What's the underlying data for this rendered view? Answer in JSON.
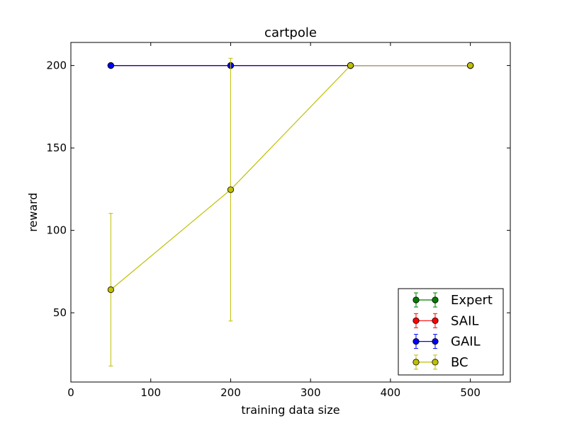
{
  "chart_data": {
    "type": "line",
    "title": "cartpole",
    "xlabel": "training data size",
    "ylabel": "reward",
    "xlim": [
      0,
      550
    ],
    "ylim": [
      8,
      214
    ],
    "xticks": [
      0,
      100,
      200,
      300,
      400,
      500
    ],
    "yticks": [
      50,
      100,
      150,
      200
    ],
    "grid": false,
    "legend_position": "lower-right",
    "series": [
      {
        "name": "Expert",
        "color": "#007f00",
        "x": [
          50,
          200,
          350,
          500
        ],
        "y": [
          200,
          200,
          200,
          200
        ],
        "yerr": [
          0,
          0,
          0,
          0
        ]
      },
      {
        "name": "SAIL",
        "color": "#ff0000",
        "x": [
          50,
          200,
          350,
          500
        ],
        "y": [
          200,
          200,
          200,
          200
        ],
        "yerr": [
          0,
          0,
          0,
          0
        ]
      },
      {
        "name": "GAIL",
        "color": "#0000ff",
        "x": [
          50,
          200,
          350,
          500
        ],
        "y": [
          200,
          200,
          200,
          200
        ],
        "yerr": [
          0,
          0,
          0,
          0
        ]
      },
      {
        "name": "BC",
        "color": "#bfbf00",
        "x": [
          50,
          200,
          350,
          500
        ],
        "y": [
          64,
          124.7,
          200,
          200
        ],
        "yerr": [
          46.3,
          79.7,
          0,
          0
        ]
      }
    ]
  }
}
